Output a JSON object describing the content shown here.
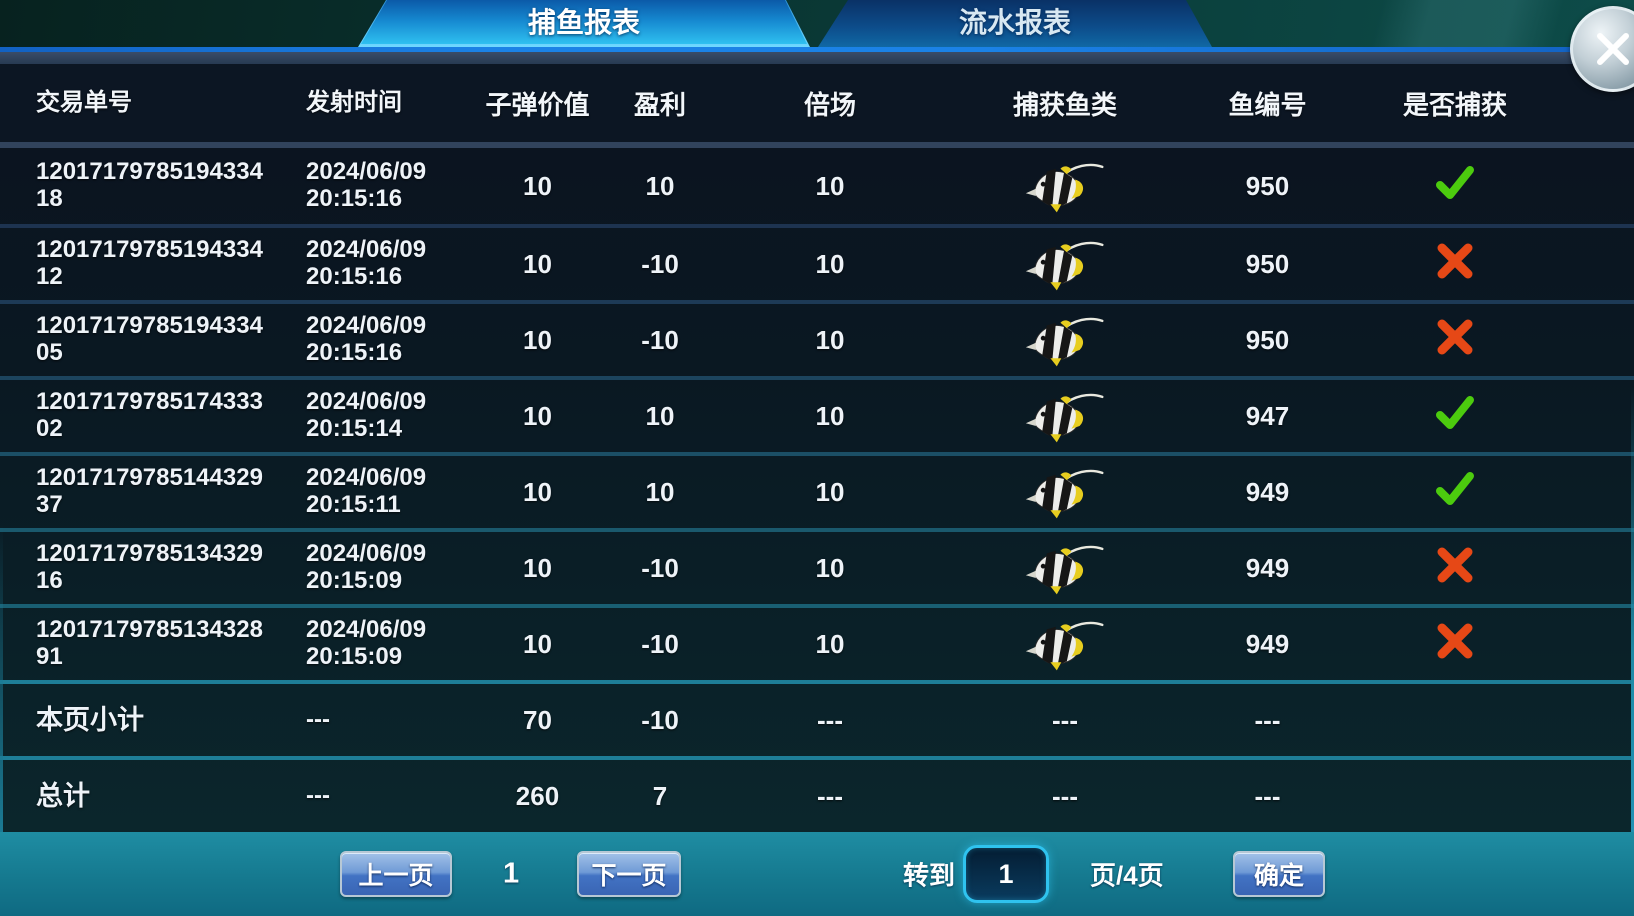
{
  "tabs": [
    {
      "label": "捕鱼报表",
      "active": true
    },
    {
      "label": "流水报表",
      "active": false
    }
  ],
  "icons": {
    "close": "close-x-circle",
    "fish": "bannerfish",
    "caught_yes": "green-check",
    "caught_no": "red-cross"
  },
  "colors": {
    "accent_cyan": "#2fc3ef",
    "tab_active_bottom": "#2fc0f0",
    "blue_line": "#1b82e6",
    "check_green": "#4ccb0e",
    "cross_red": "#e64816",
    "footer_teal": "#15798f",
    "row_dark": "#0b1420"
  },
  "table": {
    "headers": [
      "交易单号",
      "发射时间",
      "子弹价值",
      "盈利",
      "倍场",
      "捕获鱼类",
      "鱼编号",
      "是否捕获"
    ],
    "rows": [
      {
        "id": "1201717978519433418",
        "date": "2024/06/09",
        "time": "20:15:16",
        "bullet": "10",
        "profit": "10",
        "multiplier": "10",
        "fish": "bannerfish",
        "fish_no": "950",
        "caught": true
      },
      {
        "id": "1201717978519433412",
        "date": "2024/06/09",
        "time": "20:15:16",
        "bullet": "10",
        "profit": "-10",
        "multiplier": "10",
        "fish": "bannerfish",
        "fish_no": "950",
        "caught": false
      },
      {
        "id": "1201717978519433405",
        "date": "2024/06/09",
        "time": "20:15:16",
        "bullet": "10",
        "profit": "-10",
        "multiplier": "10",
        "fish": "bannerfish",
        "fish_no": "950",
        "caught": false
      },
      {
        "id": "1201717978517433302",
        "date": "2024/06/09",
        "time": "20:15:14",
        "bullet": "10",
        "profit": "10",
        "multiplier": "10",
        "fish": "bannerfish",
        "fish_no": "947",
        "caught": true
      },
      {
        "id": "1201717978514432937",
        "date": "2024/06/09",
        "time": "20:15:11",
        "bullet": "10",
        "profit": "10",
        "multiplier": "10",
        "fish": "bannerfish",
        "fish_no": "949",
        "caught": true
      },
      {
        "id": "1201717978513432916",
        "date": "2024/06/09",
        "time": "20:15:09",
        "bullet": "10",
        "profit": "-10",
        "multiplier": "10",
        "fish": "bannerfish",
        "fish_no": "949",
        "caught": false
      },
      {
        "id": "1201717978513432891",
        "date": "2024/06/09",
        "time": "20:15:09",
        "bullet": "10",
        "profit": "-10",
        "multiplier": "10",
        "fish": "bannerfish",
        "fish_no": "949",
        "caught": false
      }
    ],
    "subtotal": {
      "label": "本页小计",
      "time": "---",
      "bullet": "70",
      "profit": "-10",
      "multiplier": "---",
      "fish": "---",
      "fish_no": "---",
      "caught": ""
    },
    "total": {
      "label": "总计",
      "time": "---",
      "bullet": "260",
      "profit": "7",
      "multiplier": "---",
      "fish": "---",
      "fish_no": "---",
      "caught": ""
    }
  },
  "pagination": {
    "prev_label": "上一页",
    "current_page": "1",
    "next_label": "下一页",
    "goto_label": "转到",
    "goto_value": "1",
    "page_total_label": "页/4页",
    "confirm_label": "确定"
  }
}
